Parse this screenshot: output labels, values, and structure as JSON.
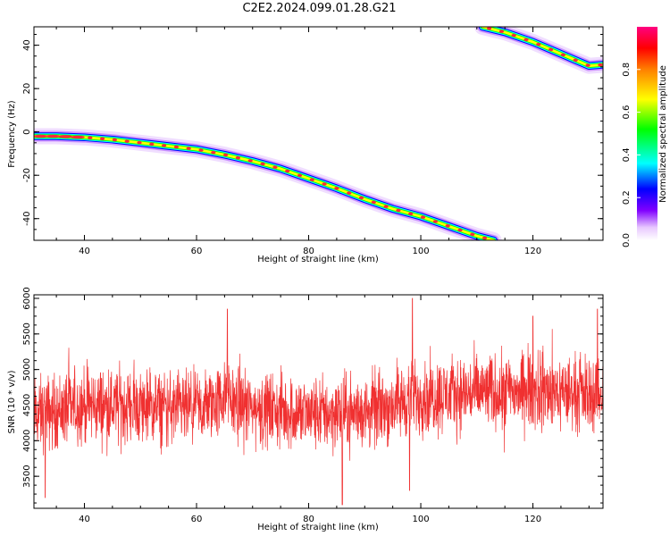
{
  "title": "C2E2.2024.099.01.28.G21",
  "colors": {
    "snr_line": "#f03030",
    "ridge_core": "#ff2a3a",
    "colormap": [
      "#ffffff",
      "#e8c8ff",
      "#8000ff",
      "#0000ff",
      "#00ffff",
      "#00ff00",
      "#ffff00",
      "#ff8000",
      "#ff0000",
      "#ff0080"
    ]
  },
  "chart_data": [
    {
      "type": "heatmap",
      "xlabel": "Height of straight line (km)",
      "ylabel": "Frequency (Hz)",
      "xlim": [
        31,
        132.5
      ],
      "ylim": [
        -50,
        48.5
      ],
      "xticks": [
        40,
        60,
        80,
        100,
        120
      ],
      "yticks": [
        -40,
        -20,
        0,
        20,
        40
      ],
      "grid": false,
      "ridges": [
        {
          "x": [
            31,
            35,
            40,
            45,
            50,
            55,
            60,
            65,
            70,
            75,
            80,
            85,
            90,
            95,
            100,
            105,
            110,
            113
          ],
          "y": [
            -2,
            -2,
            -2.5,
            -3.5,
            -5,
            -6.5,
            -8,
            -10.5,
            -13.5,
            -17,
            -21.5,
            -26,
            -31,
            -35.5,
            -39,
            -43.5,
            -48,
            -50
          ]
        },
        {
          "x": [
            111,
            115,
            120,
            125,
            130,
            132.5
          ],
          "y": [
            48.5,
            46,
            41.5,
            36,
            30.5,
            31
          ]
        }
      ],
      "colorbar": {
        "label": "Normalized spectral amplitude",
        "ticks": [
          "0.0",
          "0.2",
          "0.4",
          "0.6",
          "0.8"
        ],
        "tick_values": [
          0,
          0.2,
          0.4,
          0.6,
          0.8
        ],
        "range": [
          0,
          1
        ]
      }
    },
    {
      "type": "line",
      "xlabel": "Height of straight line (km)",
      "ylabel": "SNR (10 * v/v)",
      "xlim": [
        31,
        132.5
      ],
      "ylim": [
        3050,
        6050
      ],
      "xticks": [
        40,
        60,
        80,
        100,
        120
      ],
      "yticks": [
        3500,
        4000,
        4500,
        5000,
        5500,
        6000
      ],
      "grid": false,
      "series": [
        {
          "x_range": [
            31,
            132.5
          ],
          "baseline_profile": {
            "x": [
              31,
              40,
              50,
              60,
              65,
              70,
              80,
              90,
              100,
              110,
              120,
              132.5
            ],
            "y": [
              4350,
              4500,
              4480,
              4420,
              4600,
              4450,
              4380,
              4400,
              4620,
              4680,
              4700,
              4650
            ]
          },
          "peaks": [
            {
              "x": 65.5,
              "y": 5850
            },
            {
              "x": 98.5,
              "y": 6000
            },
            {
              "x": 120,
              "y": 5750
            },
            {
              "x": 131.5,
              "y": 5850
            }
          ],
          "troughs": [
            {
              "x": 86,
              "y": 3100
            },
            {
              "x": 33,
              "y": 3200
            },
            {
              "x": 98,
              "y": 3300
            }
          ]
        }
      ]
    }
  ]
}
